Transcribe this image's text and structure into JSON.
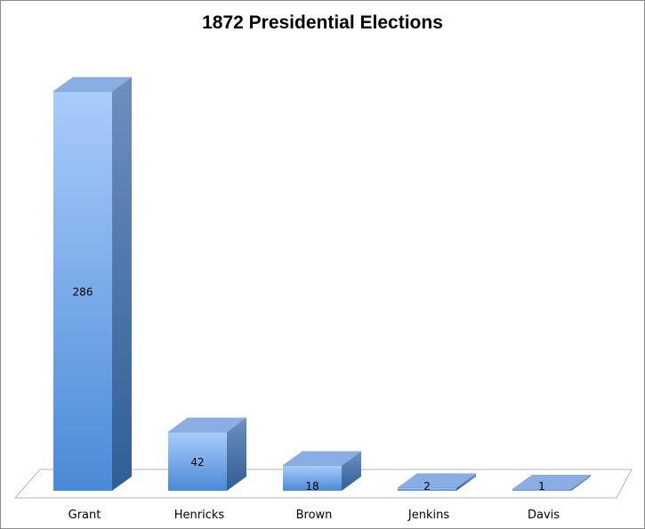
{
  "chart_data": {
    "type": "bar",
    "title": "1872 Presidential Elections",
    "categories": [
      "Grant",
      "Henricks",
      "Brown",
      "Jenkins",
      "Davis"
    ],
    "values": [
      286,
      42,
      18,
      2,
      1
    ],
    "ylim": [
      0,
      286
    ],
    "legend": "none",
    "grid": false,
    "style": "3d-column",
    "colors": {
      "front_top": "#a9ccfb",
      "front_bottom": "#4a8ad6",
      "side_top": "#6d8fbf",
      "side_bottom": "#2f5e96",
      "top": "#8aaee3",
      "floor": "#ffffff",
      "floor_stroke": "#b5b5b5"
    }
  }
}
